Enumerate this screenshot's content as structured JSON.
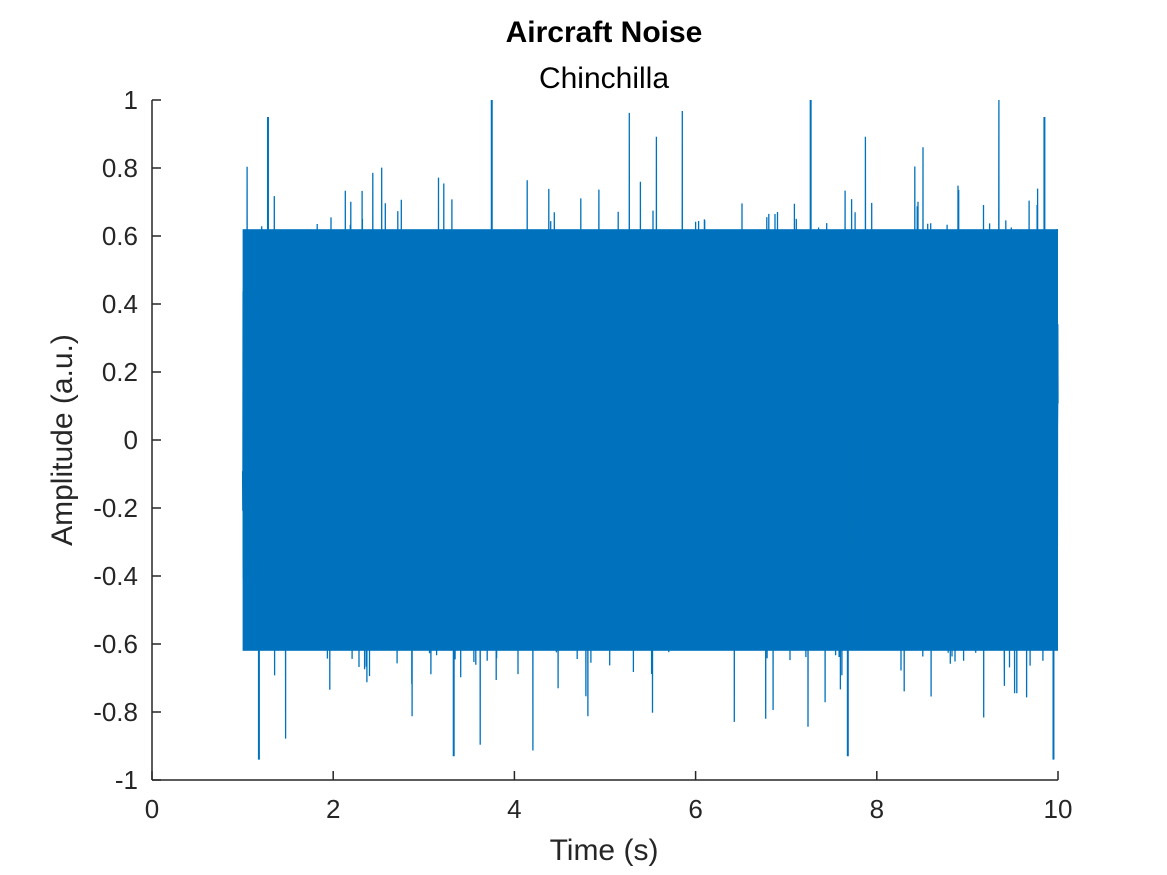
{
  "chart_data": {
    "type": "line",
    "title": "Aircraft Noise",
    "subtitle": "Chinchilla",
    "xlabel": "Time (s)",
    "ylabel": "Amplitude (a.u.)",
    "xlim": [
      0,
      10
    ],
    "ylim": [
      -1,
      1
    ],
    "xticks": [
      0,
      2,
      4,
      6,
      8,
      10
    ],
    "yticks": [
      -1,
      -0.8,
      -0.6,
      -0.4,
      -0.2,
      0,
      0.2,
      0.4,
      0.6,
      0.8,
      1
    ],
    "xtick_labels": [
      "0",
      "2",
      "4",
      "6",
      "8",
      "10"
    ],
    "ytick_labels": [
      "-1",
      "-0.8",
      "-0.6",
      "-0.4",
      "-0.2",
      "0",
      "0.2",
      "0.4",
      "0.6",
      "0.8",
      "1"
    ],
    "grid": false,
    "series": [
      {
        "color": "#0072BD",
        "signal_start": 1.0,
        "signal_end": 10.0,
        "dense_band": [
          -0.62,
          0.62
        ],
        "peak_max": 1.0,
        "peak_min": -0.94,
        "notable_peaks": [
          {
            "x": 1.28,
            "y": 0.95
          },
          {
            "x": 3.75,
            "y": 1.0
          },
          {
            "x": 7.27,
            "y": 1.0
          },
          {
            "x": 9.85,
            "y": 0.95
          },
          {
            "x": 1.18,
            "y": -0.94
          },
          {
            "x": 3.33,
            "y": -0.93
          },
          {
            "x": 7.68,
            "y": -0.93
          },
          {
            "x": 9.95,
            "y": -0.94
          }
        ]
      }
    ]
  }
}
